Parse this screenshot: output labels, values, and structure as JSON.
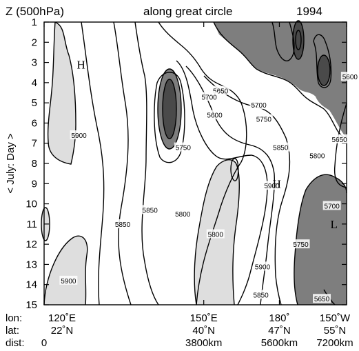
{
  "chart_data": {
    "type": "heatmap",
    "title_left": "Z (500hPa)",
    "title_mid": "along great circle",
    "title_right": "1994",
    "ylabel": "< July: Day >",
    "ylim": [
      1,
      15
    ],
    "y_ticks": [
      "1",
      "2",
      "3",
      "4",
      "5",
      "6",
      "7",
      "8",
      "9",
      "10",
      "11",
      "12",
      "13",
      "14",
      "15"
    ],
    "x_rows": {
      "lon": {
        "label": "lon:",
        "ticks": [
          {
            "dist_km": 0,
            "text": "120˚E"
          },
          {
            "dist_km": 3800,
            "text": "150˚E"
          },
          {
            "dist_km": 5600,
            "text": "180˚"
          },
          {
            "dist_km": 7200,
            "text": "150˚W"
          }
        ]
      },
      "lat": {
        "label": "lat:",
        "ticks": [
          {
            "dist_km": 0,
            "text": "22˚N"
          },
          {
            "dist_km": 3800,
            "text": "40˚N"
          },
          {
            "dist_km": 5600,
            "text": "47˚N"
          },
          {
            "dist_km": 7200,
            "text": "55˚N"
          }
        ]
      },
      "dist": {
        "label": "dist:",
        "ticks": [
          {
            "dist_km": 0,
            "text": "0"
          },
          {
            "dist_km": 3800,
            "text": "3800km"
          },
          {
            "dist_km": 5600,
            "text": "5600km"
          },
          {
            "dist_km": 7200,
            "text": "7200km"
          }
        ]
      }
    },
    "shading": [
      {
        "level": "high",
        "threshold": 5900,
        "color": "#dedede"
      },
      {
        "level": "low",
        "threshold": 5650,
        "color": "#7e7e7e"
      },
      {
        "level": "lowest",
        "threshold": 5600,
        "color": "#4a4a4a"
      }
    ],
    "contour_labels": [
      {
        "text": "5650",
        "x_km": 4200,
        "day": 4.4
      },
      {
        "text": "5700",
        "x_km": 3930,
        "day": 4.7
      },
      {
        "text": "5600",
        "x_km": 4060,
        "day": 5.6
      },
      {
        "text": "5750",
        "x_km": 5230,
        "day": 5.8
      },
      {
        "text": "5700",
        "x_km": 5110,
        "day": 5.1
      },
      {
        "text": "5600",
        "x_km": 7280,
        "day": 3.7
      },
      {
        "text": "5900",
        "x_km": 830,
        "day": 6.6
      },
      {
        "text": "5750",
        "x_km": 3310,
        "day": 7.2
      },
      {
        "text": "5850",
        "x_km": 5630,
        "day": 7.2
      },
      {
        "text": "5800",
        "x_km": 6500,
        "day": 7.6
      },
      {
        "text": "5650",
        "x_km": 7030,
        "day": 6.8
      },
      {
        "text": "5900",
        "x_km": 5420,
        "day": 9.1
      },
      {
        "text": "5700",
        "x_km": 6850,
        "day": 10.1
      },
      {
        "text": "5850",
        "x_km": 2520,
        "day": 10.3
      },
      {
        "text": "5800",
        "x_km": 3300,
        "day": 10.5
      },
      {
        "text": "5850",
        "x_km": 1870,
        "day": 11.0
      },
      {
        "text": "5800",
        "x_km": 4080,
        "day": 11.5
      },
      {
        "text": "5750",
        "x_km": 6110,
        "day": 12.0
      },
      {
        "text": "5900",
        "x_km": 5200,
        "day": 13.1
      },
      {
        "text": "5900",
        "x_km": 580,
        "day": 13.8
      },
      {
        "text": "5850",
        "x_km": 5160,
        "day": 14.5
      },
      {
        "text": "5650",
        "x_km": 6610,
        "day": 14.7
      }
    ],
    "extrema": [
      {
        "text": "H",
        "x_km": 880,
        "day": 3.1
      },
      {
        "text": "H",
        "x_km": 5540,
        "day": 9.0
      },
      {
        "text": "L",
        "x_km": 6900,
        "day": 11.0
      }
    ]
  }
}
